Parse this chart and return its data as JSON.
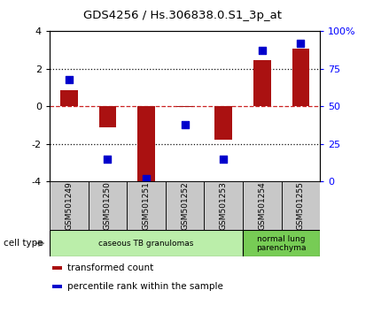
{
  "title": "GDS4256 / Hs.306838.0.S1_3p_at",
  "samples": [
    "GSM501249",
    "GSM501250",
    "GSM501251",
    "GSM501252",
    "GSM501253",
    "GSM501254",
    "GSM501255"
  ],
  "transformed_counts": [
    0.85,
    -1.1,
    -4.05,
    -0.05,
    -1.75,
    2.45,
    3.1
  ],
  "percentile_ranks": [
    68,
    15,
    2,
    38,
    15,
    87,
    92
  ],
  "ylim_left": [
    -4,
    4
  ],
  "ylim_right": [
    0,
    100
  ],
  "bar_color": "#AA1111",
  "dot_color": "#0000CC",
  "hline_color": "#CC2222",
  "dotted_color": "#111111",
  "cell_types": [
    {
      "label": "caseous TB granulomas",
      "samples": [
        0,
        1,
        2,
        3,
        4
      ],
      "color": "#BBEEAA"
    },
    {
      "label": "normal lung\nparenchyma",
      "samples": [
        5,
        6
      ],
      "color": "#77CC55"
    }
  ],
  "cell_type_label": "cell type",
  "legend_items": [
    {
      "color": "#AA1111",
      "label": "transformed count"
    },
    {
      "color": "#0000CC",
      "label": "percentile rank within the sample"
    }
  ],
  "xlabel_bg_color": "#C8C8C8",
  "background_color": "#FFFFFF",
  "bar_width": 0.45,
  "dot_size": 40,
  "right_yticks": [
    0,
    25,
    50,
    75,
    100
  ],
  "right_yticklabels": [
    "0",
    "25",
    "50",
    "75",
    "100%"
  ],
  "left_yticks": [
    -4,
    -2,
    0,
    2,
    4
  ],
  "left_yticklabels": [
    "-4",
    "-2",
    "0",
    "2",
    "4"
  ]
}
